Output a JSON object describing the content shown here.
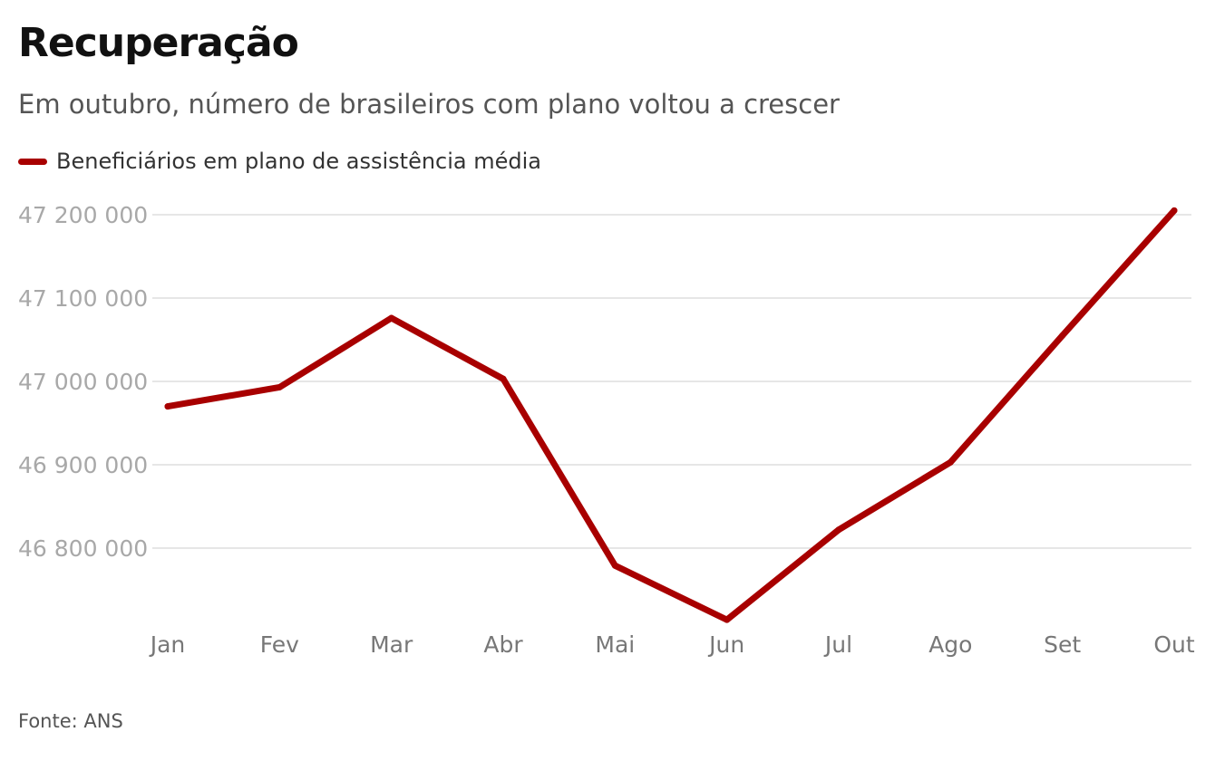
{
  "header": {
    "title": "Recuperação",
    "subtitle": "Em outubro, número de brasileiros com plano voltou a crescer"
  },
  "footer": {
    "source": "Fonte: ANS"
  },
  "chart_data": {
    "type": "line",
    "title": "Recuperação",
    "subtitle": "Em outubro, número de brasileiros com plano voltou a crescer",
    "categories": [
      "Jan",
      "Fev",
      "Mar",
      "Abr",
      "Mai",
      "Jun",
      "Jul",
      "Ago",
      "Set",
      "Out"
    ],
    "series": [
      {
        "name": "Beneficiários em plano de assistência média",
        "color": "#a80000",
        "values": [
          46970000,
          46993000,
          47076000,
          47003000,
          46779000,
          46714000,
          46822000,
          46903000,
          47055000,
          47205000
        ]
      }
    ],
    "y_ticks": [
      46800000,
      46900000,
      47000000,
      47100000,
      47200000
    ],
    "y_tick_labels": [
      "46 800 000",
      "46 900 000",
      "47 000 000",
      "47 100 000",
      "47 200 000"
    ],
    "ylim": [
      46700000,
      47200000
    ],
    "xlabel": "",
    "ylabel": "",
    "grid": true,
    "legend_position": "top-left"
  }
}
